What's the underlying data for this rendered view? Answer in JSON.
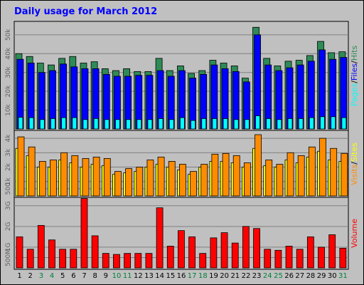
{
  "title": "Daily usage for March 2012",
  "chart_data": [
    {
      "type": "bar",
      "panel": "pages-files-hits",
      "ylabel_parts": [
        "Pages",
        "/",
        "Files",
        "/",
        "Hits"
      ],
      "ytick_labels": [
        "10k",
        "20k",
        "30k",
        "40k",
        "50k"
      ],
      "ytick_values": [
        10000,
        20000,
        30000,
        40000,
        50000
      ],
      "ylim": [
        0,
        56000
      ],
      "categories": [
        "1",
        "2",
        "3",
        "4",
        "5",
        "6",
        "7",
        "8",
        "9",
        "10",
        "11",
        "12",
        "13",
        "14",
        "15",
        "16",
        "17",
        "18",
        "19",
        "20",
        "21",
        "22",
        "23",
        "24",
        "25",
        "26",
        "27",
        "28",
        "29",
        "30",
        "31"
      ],
      "series": [
        {
          "name": "Hits",
          "color": "#2e8b57",
          "values": [
            40000,
            38500,
            35000,
            34000,
            37500,
            38500,
            35000,
            35700,
            32000,
            31000,
            32000,
            30500,
            30500,
            37500,
            31000,
            33500,
            29500,
            31000,
            36500,
            35000,
            33500,
            27000,
            54000,
            37500,
            33500,
            36000,
            36500,
            39000,
            46500,
            40500,
            41000
          ]
        },
        {
          "name": "Files",
          "color": "#0000ff",
          "values": [
            37000,
            35000,
            30000,
            31000,
            34500,
            33000,
            32000,
            32000,
            29000,
            28000,
            28000,
            28500,
            28500,
            31000,
            28000,
            31000,
            27000,
            29000,
            34000,
            32000,
            30500,
            25000,
            50000,
            34000,
            31000,
            32500,
            34000,
            36000,
            42000,
            37000,
            38000
          ]
        },
        {
          "name": "Pages",
          "color": "#00ffff",
          "values": [
            6200,
            6000,
            5000,
            5500,
            6000,
            6000,
            5000,
            5500,
            5000,
            5000,
            5000,
            5000,
            5000,
            5500,
            5000,
            6000,
            4500,
            5500,
            5500,
            5500,
            5000,
            5000,
            7000,
            5500,
            5000,
            5500,
            5500,
            6000,
            6500,
            6500,
            6000
          ]
        }
      ]
    },
    {
      "type": "bar",
      "panel": "visits-sites",
      "ylabel_parts": [
        "Visits",
        "/",
        "Sites"
      ],
      "ytick_labels": [
        "500",
        "1k",
        "2k",
        "3k",
        "4k"
      ],
      "ytick_values": [
        500,
        1000,
        2000,
        3000,
        4000
      ],
      "ylim": [
        0,
        4400
      ],
      "categories": [
        "1",
        "2",
        "3",
        "4",
        "5",
        "6",
        "7",
        "8",
        "9",
        "10",
        "11",
        "12",
        "13",
        "14",
        "15",
        "16",
        "17",
        "18",
        "19",
        "20",
        "21",
        "22",
        "23",
        "24",
        "25",
        "26",
        "27",
        "28",
        "29",
        "30",
        "31"
      ],
      "series": [
        {
          "name": "Sites",
          "color": "#ffff00",
          "values": [
            3300,
            2800,
            2000,
            2000,
            2500,
            2300,
            2000,
            2200,
            2100,
            1500,
            1600,
            1700,
            2000,
            2200,
            2000,
            1800,
            1500,
            2000,
            2400,
            2400,
            2300,
            2000,
            3300,
            2100,
            2000,
            2500,
            2300,
            2700,
            3100,
            2500,
            2400
          ]
        },
        {
          "name": "Visits",
          "color": "#ff8c00",
          "values": [
            4100,
            3400,
            2400,
            2500,
            3000,
            2800,
            2600,
            2700,
            2600,
            1700,
            1900,
            2000,
            2500,
            2700,
            2400,
            2200,
            1700,
            2200,
            2900,
            2950,
            2800,
            2300,
            4250,
            2500,
            2200,
            3000,
            2800,
            3400,
            4000,
            3300,
            2950
          ]
        }
      ]
    },
    {
      "type": "bar",
      "panel": "volume",
      "ylabel": "Volume",
      "ytick_labels": [
        "500M",
        "1G",
        "2G",
        "3G"
      ],
      "ytick_values": [
        500,
        1000,
        2000,
        3000
      ],
      "ylim": [
        0,
        3300
      ],
      "categories": [
        "1",
        "2",
        "3",
        "4",
        "5",
        "6",
        "7",
        "8",
        "9",
        "10",
        "11",
        "12",
        "13",
        "14",
        "15",
        "16",
        "17",
        "18",
        "19",
        "20",
        "21",
        "22",
        "23",
        "24",
        "25",
        "26",
        "27",
        "28",
        "29",
        "30",
        "31"
      ],
      "weekend_days": [
        "3",
        "4",
        "10",
        "11",
        "17",
        "18",
        "24",
        "25",
        "31"
      ],
      "series": [
        {
          "name": "Volume",
          "color": "#ff0000",
          "values": [
            1500,
            900,
            2050,
            1350,
            900,
            900,
            3350,
            1550,
            700,
            650,
            700,
            700,
            700,
            2900,
            1050,
            1800,
            1500,
            700,
            1450,
            1700,
            1200,
            2000,
            1900,
            900,
            850,
            1050,
            900,
            1500,
            1000,
            1600,
            950
          ]
        }
      ]
    }
  ]
}
